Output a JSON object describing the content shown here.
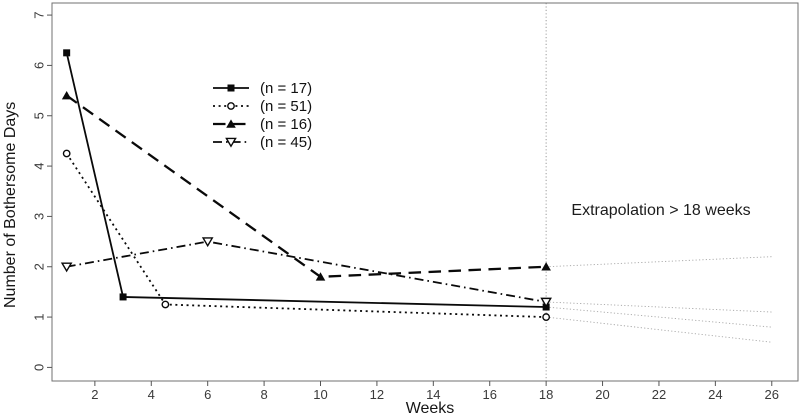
{
  "figure": {
    "x_axis_title": "Weeks",
    "y_axis_title": "Number of Bothersome Days",
    "annotation_text": "Extrapolation > 18 weeks"
  },
  "colors": {
    "series": "#0a0a0a",
    "extrapolation": "#a6a6a6",
    "reference_line": "#9c9c9c",
    "plot_border": "#707070",
    "tick": "#555555",
    "tick_label": "#3a3a3a"
  },
  "chart_data": {
    "type": "line",
    "title": "",
    "xlabel": "Weeks",
    "ylabel": "Number of Bothersome Days",
    "xlim": [
      0.48,
      26.93
    ],
    "ylim": [
      -0.27,
      7.24
    ],
    "x_ticks": [
      2,
      4,
      6,
      8,
      10,
      12,
      14,
      16,
      18,
      20,
      22,
      24,
      26
    ],
    "y_ticks": [
      0,
      1,
      2,
      3,
      4,
      5,
      6,
      7
    ],
    "grid": false,
    "legend_position": "inside-upper-left",
    "reference_line": {
      "x": 18,
      "style": "dotted"
    },
    "annotation": {
      "text": "Extrapolation > 18 weeks",
      "x": 22,
      "y": 3.1
    },
    "series": [
      {
        "label": "(n = 17)",
        "line": "solid",
        "marker": "filled-square",
        "points": [
          [
            1,
            6.25
          ],
          [
            3,
            1.4
          ],
          [
            18,
            1.2
          ]
        ],
        "extrapolation": [
          [
            18,
            1.2
          ],
          [
            26,
            0.8
          ]
        ]
      },
      {
        "label": "(n = 51)",
        "line": "dotted",
        "marker": "open-circle",
        "points": [
          [
            1,
            4.25
          ],
          [
            4.5,
            1.25
          ],
          [
            18,
            1.0
          ]
        ],
        "extrapolation": [
          [
            18,
            1.0
          ],
          [
            26,
            0.5
          ]
        ]
      },
      {
        "label": "(n = 16)",
        "line": "long-dash",
        "marker": "filled-triangle-up",
        "points": [
          [
            1,
            5.4
          ],
          [
            10,
            1.8
          ],
          [
            18,
            2.0
          ]
        ],
        "extrapolation": [
          [
            18,
            2.0
          ],
          [
            26,
            2.2
          ]
        ]
      },
      {
        "label": "(n = 45)",
        "line": "dash-dot",
        "marker": "open-triangle-down",
        "points": [
          [
            1,
            2.0
          ],
          [
            6,
            2.5
          ],
          [
            18,
            1.3
          ]
        ],
        "extrapolation": [
          [
            18,
            1.3
          ],
          [
            26,
            1.1
          ]
        ]
      }
    ],
    "extrapolation_note": "thin dotted gray lines from week 18 to week 26"
  }
}
